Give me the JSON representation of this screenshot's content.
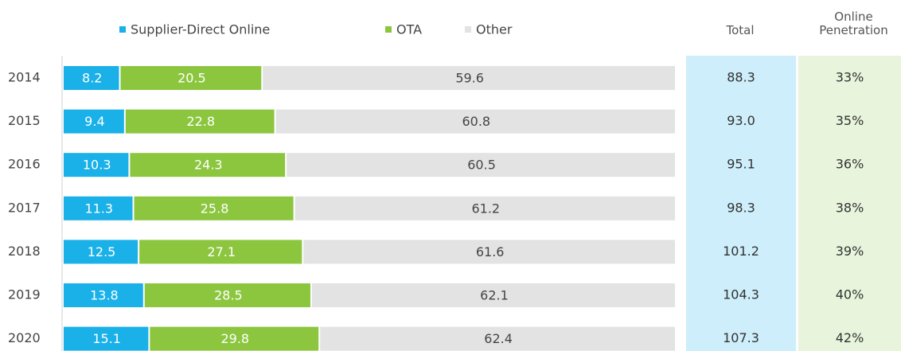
{
  "chart_data": {
    "type": "bar",
    "orientation": "horizontal",
    "stacked": "percent",
    "categories": [
      "2014",
      "2015",
      "2016",
      "2017",
      "2018",
      "2019",
      "2020"
    ],
    "series": [
      {
        "name": "Supplier-Direct Online",
        "color": "#1ab0e8",
        "label_color": "#ffffff",
        "values": [
          8.2,
          9.4,
          10.3,
          11.3,
          12.5,
          13.8,
          15.1
        ]
      },
      {
        "name": "OTA",
        "color": "#8cc63f",
        "label_color": "#ffffff",
        "values": [
          20.5,
          22.8,
          24.3,
          25.8,
          27.1,
          28.5,
          29.8
        ]
      },
      {
        "name": "Other",
        "color": "#e3e3e3",
        "label_color": "#444444",
        "values": [
          59.6,
          60.8,
          60.5,
          61.2,
          61.6,
          62.1,
          62.4
        ]
      }
    ],
    "columns": [
      {
        "name": "Total",
        "color": "#cdeefa",
        "values": [
          88.3,
          93,
          95.1,
          98.3,
          101.2,
          104.3,
          107.3
        ],
        "value_labels": [
          "88.3",
          "93.0",
          "95.1",
          "98.3",
          "101.2",
          "104.3",
          "107.3"
        ]
      },
      {
        "name": "Online Penetration",
        "color": "#e8f5dc",
        "values": [
          33,
          35,
          36,
          38,
          39,
          40,
          42
        ],
        "value_labels": [
          "33%",
          "35%",
          "36%",
          "38%",
          "39%",
          "40%",
          "42%"
        ]
      }
    ]
  }
}
